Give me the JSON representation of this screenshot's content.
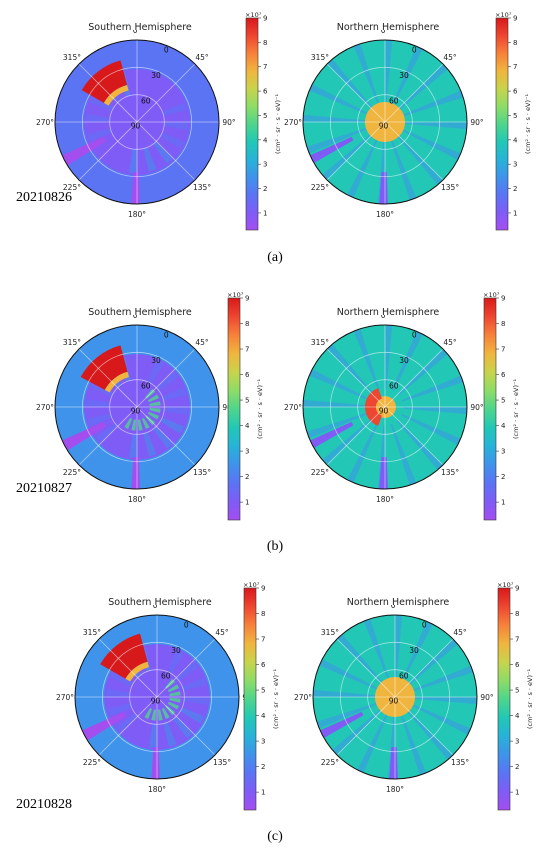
{
  "colors": {
    "background": "#8b5cf6",
    "colormap": [
      "#a44ef0",
      "#7f5cf6",
      "#5b74f4",
      "#3f93ea",
      "#27b3d8",
      "#22c8b5",
      "#4fd58c",
      "#8edc67",
      "#c8d34c",
      "#f0b53f",
      "#f7813a",
      "#ee4630",
      "#d7191c"
    ]
  },
  "chart_data": [
    {
      "type": "polar-heatmap",
      "panel": "(a)",
      "date": "20210826",
      "hemisphere": "Southern Hemisphere",
      "title": "Southern Hemisphere",
      "angle_ticks": [
        "0°",
        "45°",
        "90°",
        "135°",
        "180°",
        "225°",
        "270°",
        "315°"
      ],
      "radial_ticks": [
        "0",
        "30",
        "60",
        "90"
      ],
      "colorbar": {
        "min": 0.3,
        "max": 9,
        "ticks": [
          1,
          2,
          3,
          4,
          5,
          6,
          7,
          8,
          9
        ],
        "scale_label": "×10⁷",
        "unit": "(cm² · sr · s · eV)⁻¹"
      },
      "hotspot": {
        "angle_start": 300,
        "angle_end": 345,
        "colat_start": 42,
        "colat_end": 70,
        "value": 8.8
      },
      "inner_level": 1.0,
      "outer_level": 1.8,
      "sparse": true
    },
    {
      "type": "polar-heatmap",
      "panel": "(a)",
      "date": "20210826",
      "hemisphere": "Northern Hemisphere",
      "title": "Northern Hemisphere",
      "angle_ticks": [
        "0°",
        "45°",
        "90°",
        "135°",
        "180°",
        "225°",
        "270°",
        "315°"
      ],
      "radial_ticks": [
        "0",
        "30",
        "60",
        "90"
      ],
      "colorbar": {
        "min": 0.3,
        "max": 9,
        "ticks": [
          1,
          2,
          3,
          4,
          5,
          6,
          7,
          8,
          9
        ],
        "scale_label": "×10⁷",
        "unit": "(cm² · sr · s · eV)⁻¹"
      },
      "core": {
        "colat_extent": 22,
        "value": 6.7
      },
      "background_level": 3.8
    },
    {
      "type": "polar-heatmap",
      "panel": "(b)",
      "date": "20210827",
      "hemisphere": "Southern Hemisphere",
      "title": "Southern Hemisphere",
      "angle_ticks": [
        "0°",
        "45°",
        "90°",
        "135°",
        "180°",
        "225°",
        "270°",
        "315°"
      ],
      "radial_ticks": [
        "0",
        "30",
        "60",
        "90"
      ],
      "colorbar": {
        "min": 0.3,
        "max": 9,
        "ticks": [
          1,
          2,
          3,
          4,
          5,
          6,
          7,
          8,
          9
        ],
        "scale_label": "×10⁷",
        "unit": "(cm² · sr · s · eV)⁻¹"
      },
      "hotspot": {
        "angle_start": 298,
        "angle_end": 345,
        "colat_start": 40,
        "colat_end": 70,
        "value": 8.8
      },
      "inner_level": 1.2,
      "outer_level": 2.4,
      "sparse": false
    },
    {
      "type": "polar-heatmap",
      "panel": "(b)",
      "date": "20210827",
      "hemisphere": "Northern Hemisphere",
      "title": "Northern Hemisphere",
      "angle_ticks": [
        "0°",
        "45°",
        "90°",
        "135°",
        "180°",
        "225°",
        "270°",
        "315°"
      ],
      "radial_ticks": [
        "0",
        "30",
        "60",
        "90"
      ],
      "colorbar": {
        "min": 0.3,
        "max": 9,
        "ticks": [
          1,
          2,
          3,
          4,
          5,
          6,
          7,
          8,
          9
        ],
        "scale_label": "×10⁷",
        "unit": "(cm² · sr · s · eV)⁻¹"
      },
      "ring": {
        "angle_start": 200,
        "angle_end": 340,
        "colat_start": 10,
        "colat_end": 22,
        "value": 8.6
      },
      "core": {
        "colat_extent": 12,
        "value": 6.5
      },
      "background_level": 3.6
    },
    {
      "type": "polar-heatmap",
      "panel": "(c)",
      "date": "20210828",
      "hemisphere": "Southern Hemisphere",
      "title": "Southern Hemisphere",
      "angle_ticks": [
        "0°",
        "45°",
        "90°",
        "135°",
        "180°",
        "225°",
        "270°",
        "315°"
      ],
      "radial_ticks": [
        "0",
        "30",
        "60",
        "90"
      ],
      "colorbar": {
        "min": 0.3,
        "max": 9,
        "ticks": [
          1,
          2,
          3,
          4,
          5,
          6,
          7,
          8,
          9
        ],
        "scale_label": "×10⁷",
        "unit": "(cm² · sr · s · eV)⁻¹"
      },
      "hotspot": {
        "angle_start": 300,
        "angle_end": 345,
        "colat_start": 40,
        "colat_end": 72,
        "value": 8.9
      },
      "inner_level": 1.2,
      "outer_level": 2.6,
      "sparse": false
    },
    {
      "type": "polar-heatmap",
      "panel": "(c)",
      "date": "20210828",
      "hemisphere": "Northern Hemisphere",
      "title": "Northern Hemisphere",
      "angle_ticks": [
        "0°",
        "45°",
        "90°",
        "135°",
        "180°",
        "225°",
        "270°",
        "315°"
      ],
      "radial_ticks": [
        "0",
        "30",
        "60",
        "90"
      ],
      "colorbar": {
        "min": 0.3,
        "max": 9,
        "ticks": [
          1,
          2,
          3,
          4,
          5,
          6,
          7,
          8,
          9
        ],
        "scale_label": "×10⁷",
        "unit": "(cm² · sr · s · eV)⁻¹"
      },
      "core": {
        "colat_extent": 22,
        "value": 6.8
      },
      "background_level": 3.8
    }
  ],
  "panels": [
    {
      "label": "(a)",
      "date": "20210826"
    },
    {
      "label": "(b)",
      "date": "20210827"
    },
    {
      "label": "(c)",
      "date": "20210828"
    }
  ]
}
